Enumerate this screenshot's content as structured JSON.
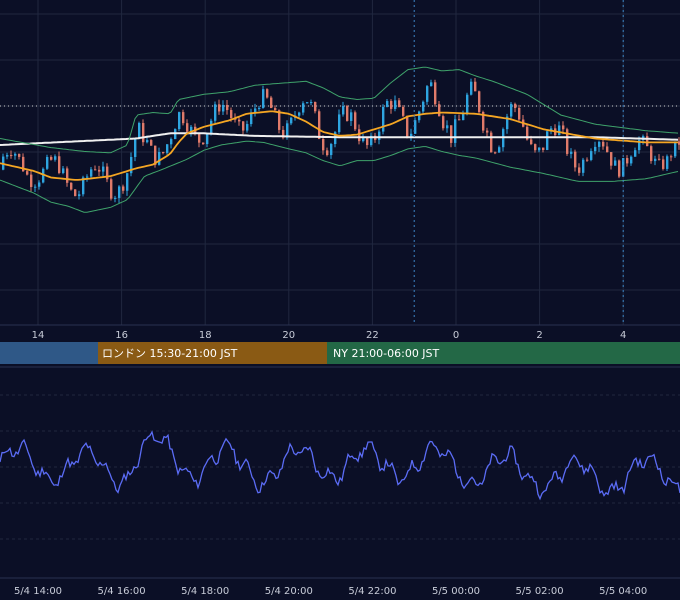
{
  "chart_data": [
    {
      "type": "line",
      "panel": "price",
      "subtype": "candlestick",
      "x_ticks": [
        "14",
        "16",
        "18",
        "20",
        "22",
        "0",
        "2",
        "4"
      ],
      "series": [
        {
          "key": "ma_long",
          "color": "#f0f0f0",
          "x": [
            0,
            16,
            20,
            24,
            30,
            40,
            46,
            52,
            55,
            64,
            70,
            80
          ],
          "y": [
            50,
            55,
            59,
            59,
            57,
            56,
            56,
            56,
            56,
            56,
            56,
            54
          ]
        },
        {
          "key": "ma_mid",
          "color": "#f5a623",
          "x": [
            0,
            4,
            6,
            9,
            13,
            16,
            18,
            20,
            21,
            22,
            24,
            27,
            29,
            32,
            34,
            36,
            38,
            40,
            42,
            44,
            46,
            48,
            50,
            52,
            56,
            60,
            64,
            70,
            76,
            80
          ],
          "y": [
            36,
            30,
            25,
            23,
            26,
            32,
            35,
            43,
            52,
            59,
            64,
            69,
            74,
            76,
            74,
            68,
            60,
            57,
            58,
            62,
            66,
            72,
            74,
            75,
            74,
            70,
            62,
            55,
            52,
            52
          ]
        },
        {
          "key": "bb_upper",
          "color": "#3fa36b",
          "x": [
            0,
            6,
            10,
            13,
            15,
            16,
            18,
            20,
            21,
            24,
            27,
            30,
            32,
            36,
            38,
            40,
            42,
            44,
            46,
            48,
            50,
            52,
            54,
            56,
            58,
            62,
            66,
            70,
            76,
            80
          ],
          "y": [
            55,
            48,
            45,
            44,
            50,
            73,
            75,
            74,
            85,
            89,
            91,
            96,
            97,
            99,
            94,
            87,
            85,
            86,
            98,
            108,
            110,
            107,
            108,
            103,
            99,
            89,
            73,
            66,
            61,
            59
          ]
        },
        {
          "key": "bb_lower",
          "color": "#3fa36b",
          "x": [
            0,
            4,
            6,
            8,
            10,
            13,
            15,
            17,
            19,
            22,
            24,
            26,
            29,
            31,
            34,
            36,
            38,
            40,
            42,
            44,
            46,
            48,
            50,
            52,
            54,
            56,
            60,
            64,
            68,
            72,
            76,
            80
          ],
          "y": [
            23,
            13,
            6,
            3,
            -2,
            2,
            8,
            26,
            31,
            39,
            46,
            50,
            53,
            52,
            47,
            44,
            38,
            34,
            38,
            38,
            42,
            47,
            49,
            45,
            42,
            40,
            33,
            28,
            22,
            22,
            24,
            30
          ]
        }
      ],
      "reference_line": {
        "y": 80,
        "style": "dotted"
      }
    },
    {
      "type": "line",
      "panel": "oscillator",
      "series": [
        {
          "key": "oscillator",
          "color": "#5b6cf5"
        }
      ],
      "x_ticks": [
        "5/4 14:00",
        "5/4 16:00",
        "5/4 18:00",
        "5/4 20:00",
        "5/4 22:00",
        "5/5 00:00",
        "5/5 02:00",
        "5/5 04:00"
      ]
    }
  ],
  "sessions": [
    {
      "label": "",
      "color": "#2f5887"
    },
    {
      "label": "ロンドン 15:30-21:00 JST",
      "color": "#8a5a14"
    },
    {
      "label": "NY 21:00-06:00 JST",
      "color": "#236846"
    }
  ],
  "colors": {
    "background": "#0b0f26",
    "grid": "#20273f",
    "candle_up": "#2ea5e0",
    "candle_down": "#e07a6a",
    "session_marker": "#3d86c6"
  }
}
